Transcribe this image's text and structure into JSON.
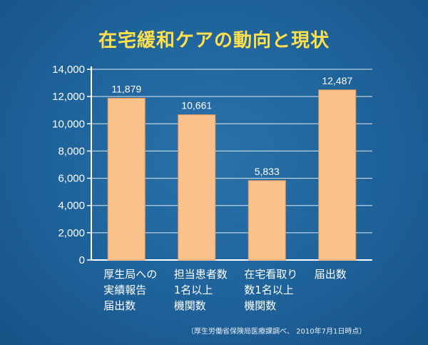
{
  "chart_data": {
    "type": "bar",
    "title": "在宅緩和ケアの動向と現状",
    "categories": [
      [
        "厚生局への",
        "実績報告",
        "届出数"
      ],
      [
        "担当患者数",
        "1名以上",
        "機関数"
      ],
      [
        "在宅看取り",
        "数1名以上",
        "機関数"
      ],
      [
        "届出数"
      ]
    ],
    "values": [
      11879,
      10661,
      5833,
      12487
    ],
    "data_labels": [
      "11,879",
      "10,661",
      "5,833",
      "12,487"
    ],
    "yticks": [
      "0",
      "2,000",
      "4,000",
      "6,000",
      "8,000",
      "10,000",
      "12,000",
      "14,000"
    ],
    "ylim": [
      0,
      14000
    ],
    "grid": true,
    "xlabel": "",
    "ylabel": "",
    "colors": {
      "bar": "#f9c28a",
      "bar_edge": "#e8955a",
      "axis": "#ffffff",
      "grid": "#ffffff",
      "title": "#ffe04a",
      "text": "#ffffff"
    }
  },
  "source_note": "（厚生労働省保険局医療課調べ、 2010年7月1日時点）"
}
